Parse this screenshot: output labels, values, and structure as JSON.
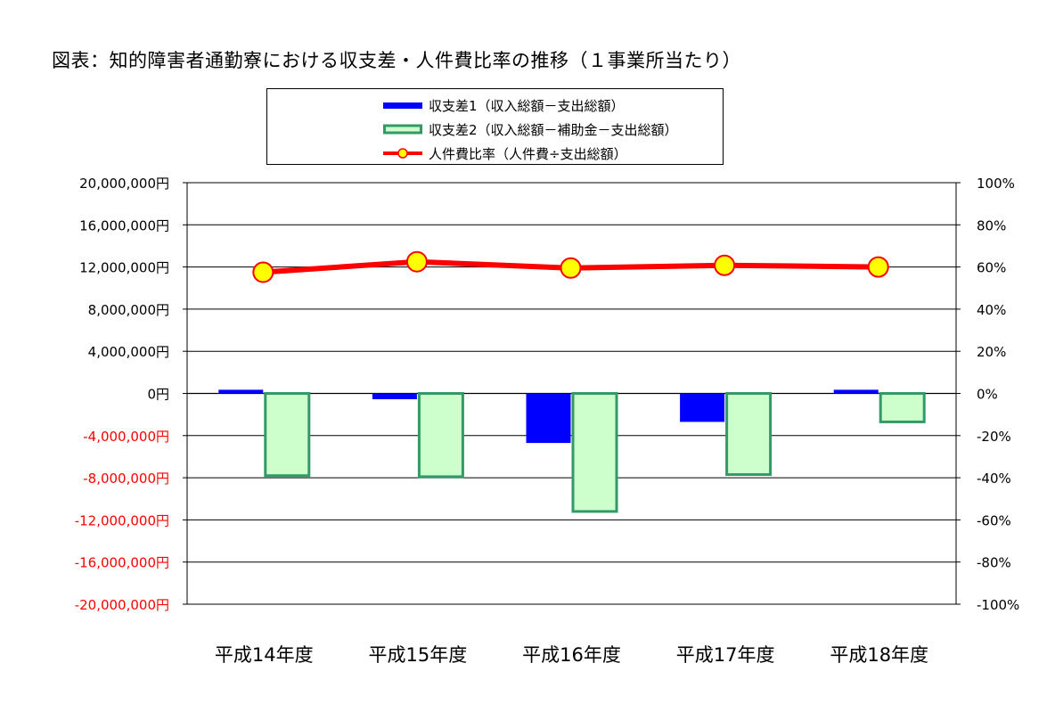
{
  "chart_data": {
    "type": "bar",
    "title": "図表：知的障害者通勤寮における収支差・人件費比率の推移（１事業所当たり）",
    "categories": [
      "平成14年度",
      "平成15年度",
      "平成16年度",
      "平成17年度",
      "平成18年度"
    ],
    "series": [
      {
        "name": "収支差1（収入総額－支出総額）",
        "kind": "bar",
        "axis": "left",
        "color": "#0000ff",
        "values": [
          350000,
          -550000,
          -4700000,
          -2700000,
          350000
        ]
      },
      {
        "name": "収支差2（収入総額－補助金－支出総額）",
        "kind": "bar",
        "axis": "left",
        "color": "#ccffcc",
        "stroke": "#339966",
        "values": [
          -7800000,
          -7900000,
          -11200000,
          -7700000,
          -2700000
        ]
      },
      {
        "name": "人件費比率（人件費÷支出総額）",
        "kind": "line",
        "axis": "right",
        "color": "#ff0000",
        "marker_fill": "#ffff00",
        "values": [
          57.5,
          62.5,
          59.5,
          60.8,
          60.0
        ]
      }
    ],
    "y_left": {
      "lim": [
        -20000000,
        20000000
      ],
      "ticks": [
        20000000,
        16000000,
        12000000,
        8000000,
        4000000,
        0,
        -4000000,
        -8000000,
        -12000000,
        -16000000,
        -20000000
      ],
      "tick_labels": [
        "20,000,000円",
        "16,000,000円",
        "12,000,000円",
        "8,000,000円",
        "4,000,000円",
        "0円",
        "-4,000,000円",
        "-8,000,000円",
        "-12,000,000円",
        "-16,000,000円",
        "-20,000,000円"
      ],
      "negative_label_color": "#ff0000"
    },
    "y_right": {
      "lim": [
        -100,
        100
      ],
      "tick_labels": [
        "100%",
        "80%",
        "60%",
        "40%",
        "20%",
        "0%",
        "-20%",
        "-40%",
        "-60%",
        "-80%",
        "-100%"
      ]
    },
    "grid": true,
    "legend_position": "top-center"
  }
}
